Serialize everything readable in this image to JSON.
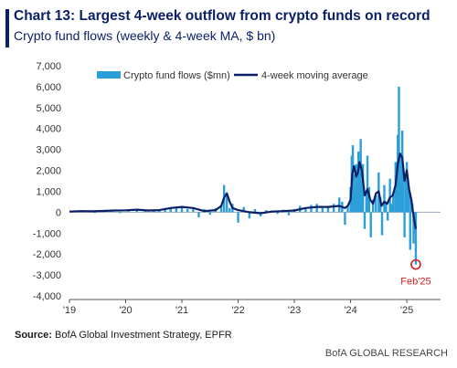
{
  "header": {
    "title": "Chart 13: Largest 4-week outflow from crypto funds on record",
    "subtitle": "Crypto fund flows (weekly & 4-week MA, $ bn)"
  },
  "footer": {
    "source_label": "Source:",
    "source_text": "BofA Global Investment Strategy, EPFR",
    "credit": "BofA GLOBAL RESEARCH"
  },
  "chart_data": {
    "type": "bar",
    "x_ticks": [
      "'19",
      "'20",
      "'21",
      "'22",
      "'23",
      "'24",
      "'25"
    ],
    "y_ticks": [
      "7,000",
      "6,000",
      "5,000",
      "4,000",
      "3,000",
      "2,000",
      "1,000",
      "0",
      "-1,000",
      "-2,000",
      "-3,000",
      "-4,000"
    ],
    "ylim": [
      -4000,
      7000
    ],
    "xlim": [
      2019.0,
      2025.6
    ],
    "grid": false,
    "legend_position": "top",
    "series": [
      {
        "name": "Crypto fund flows ($mn)",
        "kind": "bar",
        "color": "#2c9fd9",
        "x": [
          2019.02,
          2019.15,
          2019.3,
          2019.45,
          2019.6,
          2019.75,
          2019.9,
          2020.05,
          2020.2,
          2020.35,
          2020.5,
          2020.6,
          2020.7,
          2020.8,
          2020.9,
          2021.0,
          2021.1,
          2021.2,
          2021.3,
          2021.4,
          2021.5,
          2021.6,
          2021.7,
          2021.75,
          2021.8,
          2021.85,
          2021.9,
          2022.0,
          2022.1,
          2022.2,
          2022.3,
          2022.4,
          2022.5,
          2022.6,
          2022.7,
          2022.8,
          2022.9,
          2023.0,
          2023.1,
          2023.2,
          2023.3,
          2023.4,
          2023.5,
          2023.6,
          2023.7,
          2023.8,
          2023.85,
          2023.9,
          2023.95,
          2024.0,
          2024.02,
          2024.04,
          2024.06,
          2024.08,
          2024.1,
          2024.12,
          2024.14,
          2024.16,
          2024.18,
          2024.2,
          2024.22,
          2024.25,
          2024.28,
          2024.3,
          2024.33,
          2024.36,
          2024.4,
          2024.45,
          2024.5,
          2024.53,
          2024.56,
          2024.6,
          2024.63,
          2024.66,
          2024.7,
          2024.73,
          2024.76,
          2024.8,
          2024.82,
          2024.84,
          2024.86,
          2024.88,
          2024.9,
          2024.92,
          2024.94,
          2024.96,
          2024.98,
          2025.0,
          2025.02,
          2025.04,
          2025.06,
          2025.08,
          2025.1,
          2025.12,
          2025.14,
          2025.16
        ],
        "values": [
          50,
          80,
          60,
          -40,
          100,
          120,
          -50,
          80,
          150,
          100,
          60,
          120,
          200,
          180,
          250,
          300,
          150,
          200,
          -250,
          150,
          -120,
          200,
          350,
          1300,
          800,
          200,
          400,
          -500,
          250,
          -300,
          150,
          -200,
          100,
          80,
          -80,
          120,
          -150,
          150,
          300,
          200,
          350,
          400,
          200,
          300,
          400,
          700,
          500,
          -600,
          300,
          1200,
          2700,
          3200,
          1800,
          900,
          2300,
          1400,
          2900,
          2200,
          3500,
          1500,
          2300,
          -800,
          900,
          2700,
          1200,
          -1200,
          600,
          800,
          1900,
          700,
          -1100,
          1300,
          500,
          -400,
          1600,
          400,
          900,
          2400,
          1800,
          3700,
          6000,
          2700,
          1500,
          3900,
          2100,
          -1200,
          1800,
          2400,
          1200,
          900,
          -1800,
          600,
          400,
          -1500,
          -1000,
          -2500
        ]
      },
      {
        "name": "4-week moving average",
        "kind": "line",
        "color": "#0a1f66",
        "x": [
          2019.0,
          2019.2,
          2019.4,
          2019.6,
          2019.8,
          2020.0,
          2020.2,
          2020.4,
          2020.6,
          2020.8,
          2021.0,
          2021.2,
          2021.4,
          2021.6,
          2021.7,
          2021.75,
          2021.8,
          2021.85,
          2021.9,
          2022.0,
          2022.1,
          2022.2,
          2022.4,
          2022.6,
          2022.8,
          2023.0,
          2023.2,
          2023.4,
          2023.6,
          2023.8,
          2023.9,
          2023.95,
          2024.0,
          2024.03,
          2024.06,
          2024.1,
          2024.13,
          2024.16,
          2024.2,
          2024.25,
          2024.3,
          2024.35,
          2024.4,
          2024.45,
          2024.5,
          2024.55,
          2024.6,
          2024.65,
          2024.7,
          2024.75,
          2024.8,
          2024.84,
          2024.88,
          2024.92,
          2024.96,
          2025.0,
          2025.04,
          2025.08,
          2025.12,
          2025.16
        ],
        "values": [
          30,
          50,
          40,
          60,
          80,
          90,
          120,
          80,
          100,
          200,
          250,
          200,
          50,
          100,
          300,
          700,
          900,
          500,
          200,
          100,
          50,
          0,
          -50,
          30,
          50,
          80,
          200,
          250,
          250,
          300,
          200,
          300,
          600,
          1800,
          2200,
          1700,
          1900,
          2400,
          2000,
          800,
          1100,
          600,
          400,
          900,
          1000,
          300,
          500,
          400,
          700,
          800,
          1300,
          2300,
          2800,
          2600,
          1500,
          2000,
          1100,
          600,
          -200,
          -800
        ]
      }
    ],
    "annotation": {
      "label": "Feb'25",
      "x": 2025.16,
      "y": -2500,
      "color": "#d81e1e"
    }
  }
}
